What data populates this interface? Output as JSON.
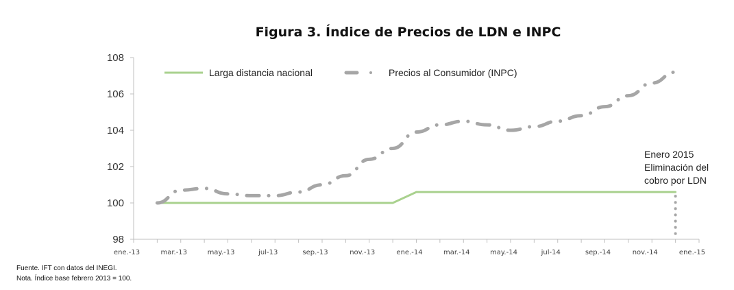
{
  "chart_data": {
    "type": "line",
    "title": "Figura 3. Índice de Precios de LDN e INPC",
    "xlabel": "",
    "ylabel": "",
    "ylim": [
      98,
      108
    ],
    "yticks": [
      "98",
      "100",
      "102",
      "104",
      "106",
      "108"
    ],
    "xtick_labels": [
      "ene.-13",
      "mar.-13",
      "may.-13",
      "jul-13",
      "sep.-13",
      "nov.-13",
      "ene.-14",
      "mar.-14",
      "may.-14",
      "jul-14",
      "sep.-14",
      "nov.-14",
      "ene.-15"
    ],
    "x": [
      "feb-13",
      "mar-13",
      "abr-13",
      "may-13",
      "jun-13",
      "jul-13",
      "ago-13",
      "sep-13",
      "oct-13",
      "nov-13",
      "dic-13",
      "ene-14",
      "feb-14",
      "mar-14",
      "abr-14",
      "may-14",
      "jun-14",
      "jul-14",
      "ago-14",
      "sep-14",
      "oct-14",
      "nov-14",
      "dic-14"
    ],
    "series": [
      {
        "name": "Larga distancia nacional",
        "color": "#a9d18e",
        "style": "solid",
        "values": [
          100,
          100,
          100,
          100,
          100,
          100,
          100,
          100,
          100,
          100,
          100,
          100.6,
          100.6,
          100.6,
          100.6,
          100.6,
          100.6,
          100.6,
          100.6,
          100.6,
          100.6,
          100.6,
          100.6
        ]
      },
      {
        "name": "Precios al Consumidor (INPC)",
        "color": "#a6a6a6",
        "style": "dash-dot",
        "values": [
          100,
          100.7,
          100.8,
          100.5,
          100.4,
          100.4,
          100.6,
          101.0,
          101.5,
          102.4,
          103.0,
          103.9,
          104.3,
          104.5,
          104.3,
          104.0,
          104.2,
          104.5,
          104.8,
          105.3,
          105.9,
          106.6,
          107.2
        ]
      }
    ],
    "legend": "top",
    "annotation": [
      "Enero 2015",
      "Eliminación del",
      "cobro por LDN"
    ],
    "annotation_drop_to": 98,
    "grid": false
  },
  "notes": {
    "source": "Fuente. IFT con datos del INEGI.",
    "note": "Nota. Índice base febrero 2013 = 100."
  }
}
